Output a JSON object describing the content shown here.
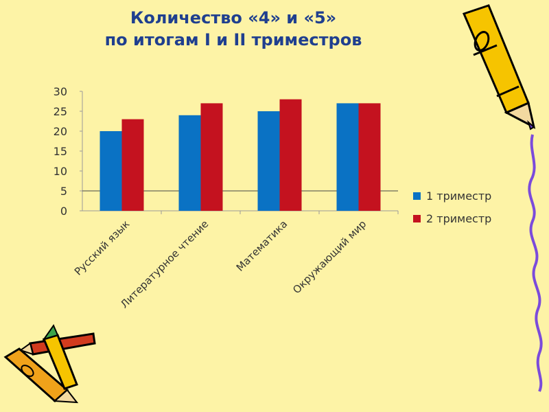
{
  "slide": {
    "title_line1": "Количество «4» и «5»",
    "title_line2": "по итогам I и II триместров"
  },
  "colors": {
    "background": "#fdf3a6",
    "title": "#1f3f8f",
    "series1": "#0a72c4",
    "series2": "#c4121f",
    "axis_text": "#333333"
  },
  "chart_data": {
    "type": "bar",
    "title": "",
    "xlabel": "",
    "ylabel": "",
    "categories": [
      "Русский язык",
      "Литературное чтение",
      "Математика",
      "Окружающий мир"
    ],
    "series": [
      {
        "name": "1 триместр",
        "values": [
          20,
          24,
          25,
          27
        ]
      },
      {
        "name": "2 триместр",
        "values": [
          23,
          27,
          28,
          27
        ]
      }
    ],
    "ylim": [
      0,
      30
    ],
    "yticks": [
      0,
      5,
      10,
      15,
      20,
      25,
      30
    ],
    "grid": "horizontal line at 5 only",
    "legend_position": "right"
  }
}
